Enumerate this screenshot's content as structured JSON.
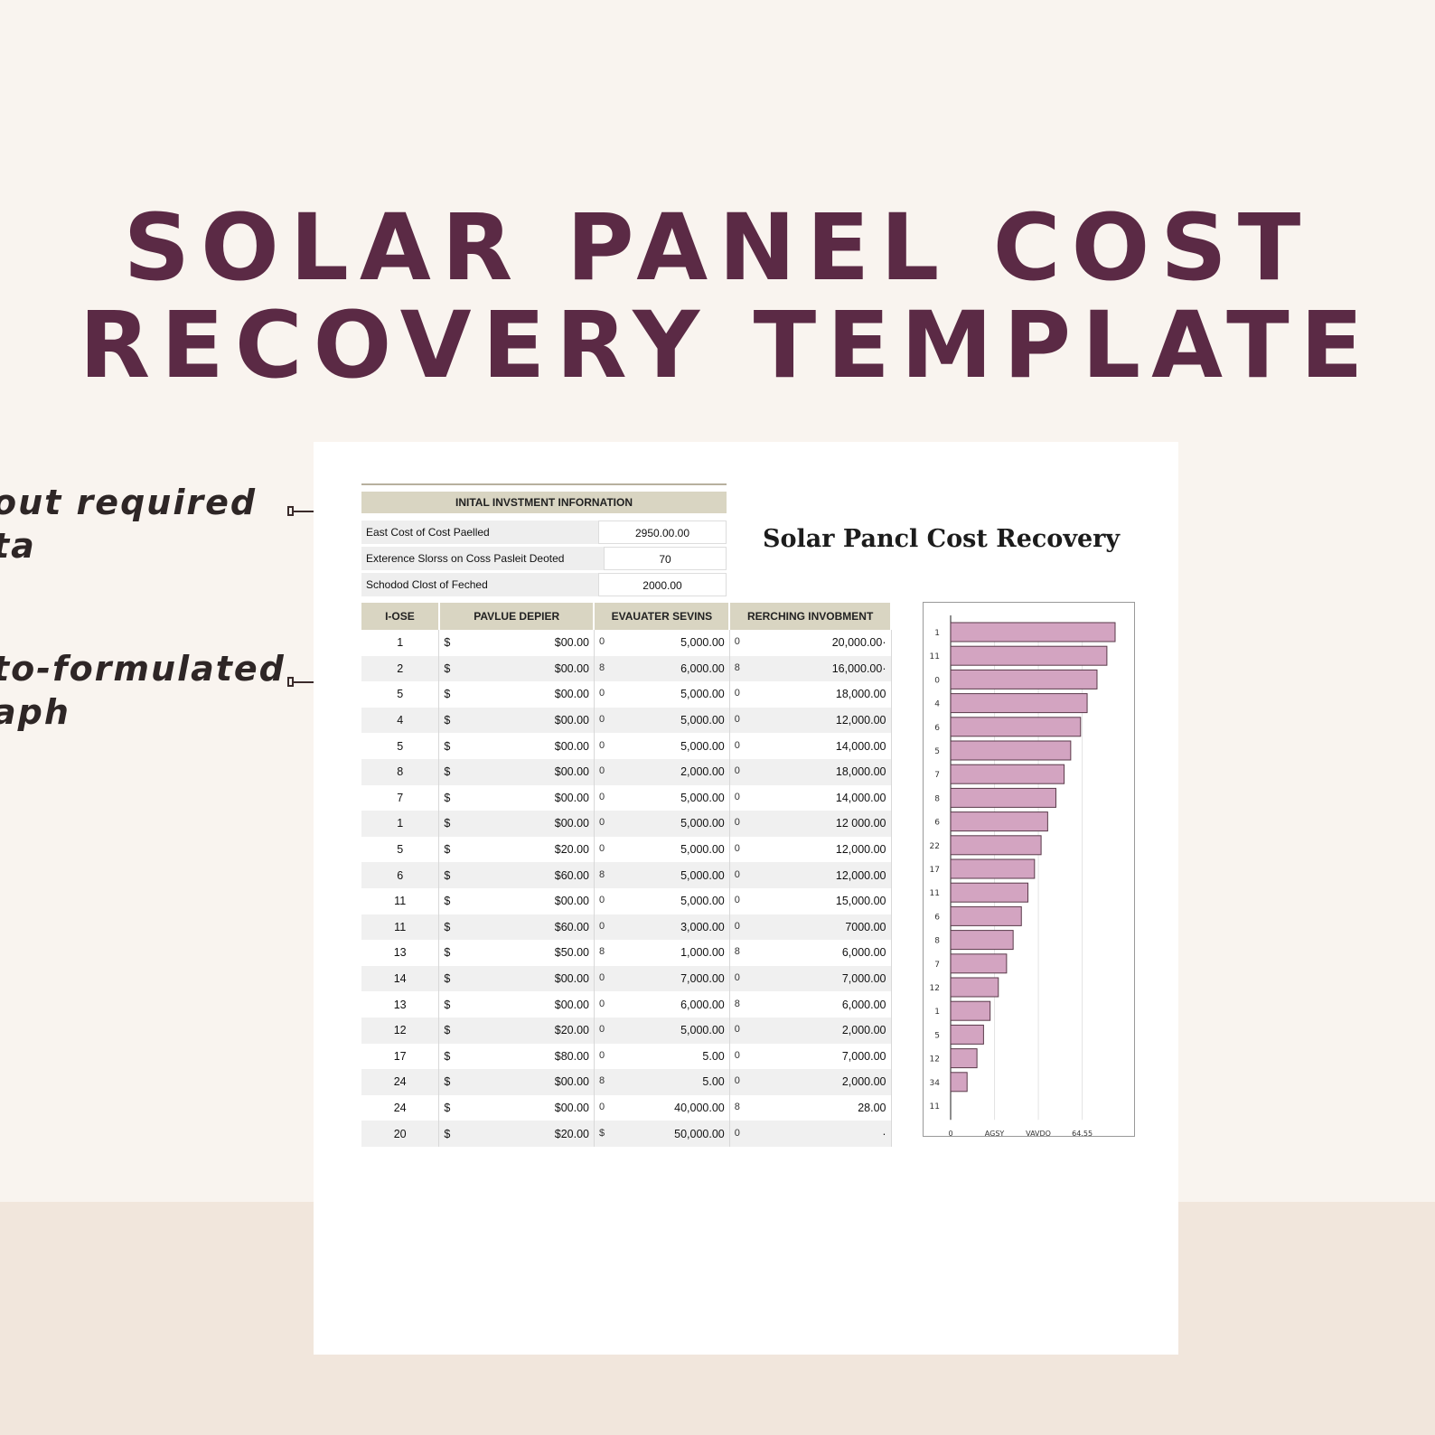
{
  "heading": {
    "line1": "SOLAR PANEL COST",
    "line2": "RECOVERY TEMPLATE"
  },
  "callouts": [
    {
      "line1": "out required",
      "line2": "ta"
    },
    {
      "line1": "to-formulated",
      "line2": "aph"
    }
  ],
  "info": {
    "header": "INITAL INVSTMENT INFORNATION",
    "rows": [
      {
        "label": "East Cost of Cost Paelled",
        "value": "2950.00.00"
      },
      {
        "label": "Exterence Slorss on Coss Pasleit Deoted",
        "value": "70"
      },
      {
        "label": "Schodod Clost of Feched",
        "value": "2000.00"
      }
    ]
  },
  "table": {
    "headers": [
      "I-OSE",
      "PAVLUE DEPIER",
      "EVAUATER SEVINS",
      "RERCHING INVOBMENT"
    ],
    "rows": [
      [
        "1",
        "$",
        "$00.00",
        "0",
        "5,000.00",
        "0",
        "20,000.00·"
      ],
      [
        "2",
        "$",
        "$00.00",
        "8",
        "6,000.00",
        "8",
        "16,000.00·"
      ],
      [
        "5",
        "$",
        "$00.00",
        "0",
        "5,000.00",
        "0",
        "18,000.00"
      ],
      [
        "4",
        "$",
        "$00.00",
        "0",
        "5,000.00",
        "0",
        "12,000.00"
      ],
      [
        "5",
        "$",
        "$00.00",
        "0",
        "5,000.00",
        "0",
        "14,000.00"
      ],
      [
        "8",
        "$",
        "$00.00",
        "0",
        "2,000.00",
        "0",
        "18,000.00"
      ],
      [
        "7",
        "$",
        "$00.00",
        "0",
        "5,000.00",
        "0",
        "14,000.00"
      ],
      [
        "1",
        "$",
        "$00.00",
        "0",
        "5,000.00",
        "0",
        "12 000.00"
      ],
      [
        "5",
        "$",
        "$20.00",
        "0",
        "5,000.00",
        "0",
        "12,000.00"
      ],
      [
        "6",
        "$",
        "$60.00",
        "8",
        "5,000.00",
        "0",
        "12,000.00"
      ],
      [
        "11",
        "$",
        "$00.00",
        "0",
        "5,000.00",
        "0",
        "15,000.00"
      ],
      [
        "11",
        "$",
        "$60.00",
        "0",
        "3,000.00",
        "0",
        "7000.00"
      ],
      [
        "13",
        "$",
        "$50.00",
        "8",
        "1,000.00",
        "8",
        "6,000.00"
      ],
      [
        "14",
        "$",
        "$00.00",
        "0",
        "7,000.00",
        "0",
        "7,000.00"
      ],
      [
        "13",
        "$",
        "$00.00",
        "0",
        "6,000.00",
        "8",
        "6,000.00"
      ],
      [
        "12",
        "$",
        "$20.00",
        "0",
        "5,000.00",
        "0",
        "2,000.00"
      ],
      [
        "17",
        "$",
        "$80.00",
        "0",
        "5.00",
        "0",
        "7,000.00"
      ],
      [
        "24",
        "$",
        "$00.00",
        "8",
        "5.00",
        "0",
        "2,000.00"
      ],
      [
        "24",
        "$",
        "$00.00",
        "0",
        "40,000.00",
        "8",
        "28.00"
      ],
      [
        "20",
        "$",
        "$20.00",
        "$",
        "50,000.00",
        "0",
        "·"
      ]
    ]
  },
  "chart_title": "Solar Pancl Cost Recovery",
  "chart_data": {
    "type": "bar",
    "orientation": "horizontal",
    "categories": [
      "1",
      "11",
      "0",
      "4",
      "6",
      "5",
      "7",
      "8",
      "6",
      "22",
      "17",
      "11",
      "6",
      "8",
      "7",
      "12",
      "1",
      "5",
      "12",
      "34",
      "11"
    ],
    "values": [
      100,
      95,
      89,
      83,
      79,
      73,
      69,
      64,
      59,
      55,
      51,
      47,
      43,
      38,
      34,
      29,
      24,
      20,
      16,
      10,
      0
    ],
    "x_ticks": [
      "0",
      "AGSY",
      "VAVDO",
      "64.55"
    ],
    "bar_color": "#d3a4c1",
    "bar_edge_color": "#5a3a4a",
    "grid": true
  },
  "colors": {
    "title": "#5b2a45",
    "header_fill": "#d9d5c2",
    "background": "#f9f4ef"
  }
}
